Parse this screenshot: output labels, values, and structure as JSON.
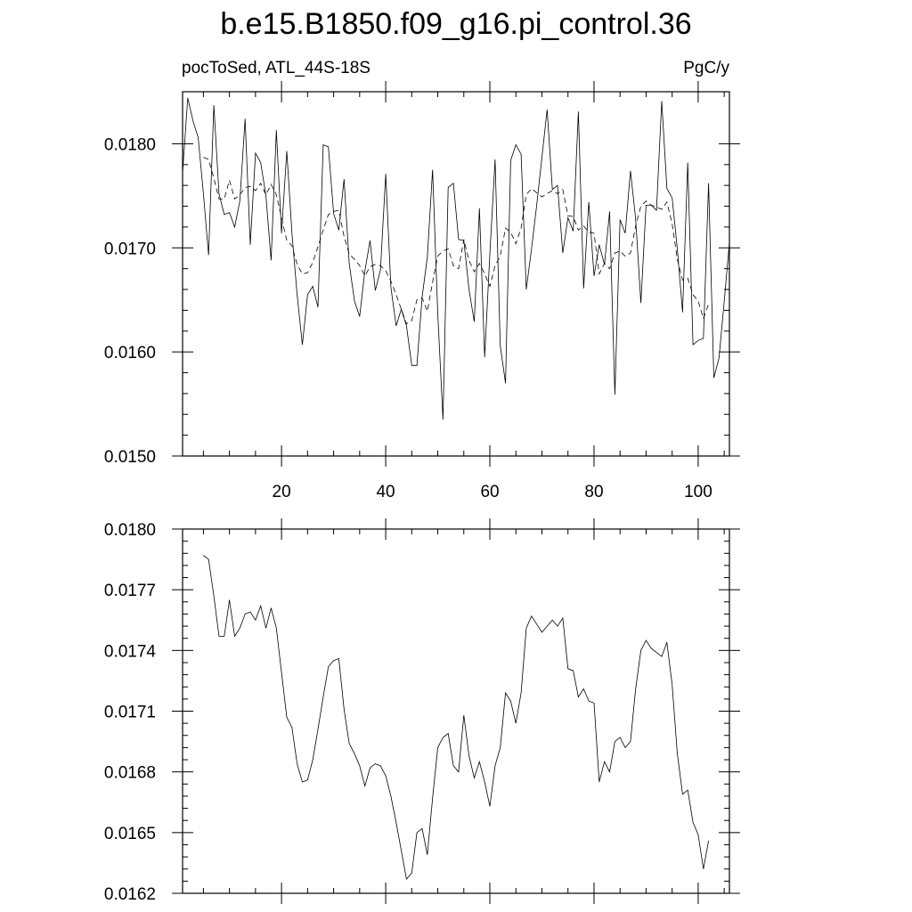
{
  "title": "b.e15.B1850.f09_g16.pi_control.36",
  "chart_data": [
    {
      "type": "line",
      "subtitle_left": "pocToSed, ATL_44S-18S",
      "subtitle_right": "PgC/y",
      "xlim": [
        1,
        106
      ],
      "ylim": [
        0.015,
        0.0185
      ],
      "xticks": [
        20,
        40,
        60,
        80,
        100
      ],
      "xtick_labels": [
        "20",
        "40",
        "60",
        "80",
        "100"
      ],
      "yticks": [
        0.015,
        0.016,
        0.017,
        0.018
      ],
      "ytick_labels": [
        "0.0150",
        "0.0160",
        "0.0170",
        "0.0180"
      ],
      "series": [
        {
          "style": "solid",
          "x": [
            1,
            2,
            3,
            4,
            5,
            6,
            7,
            8,
            9,
            10,
            11,
            12,
            13,
            14,
            15,
            16,
            17,
            18,
            19,
            20,
            21,
            22,
            23,
            24,
            25,
            26,
            27,
            28,
            29,
            30,
            31,
            32,
            33,
            34,
            35,
            36,
            37,
            38,
            39,
            40,
            41,
            42,
            43,
            44,
            45,
            46,
            47,
            48,
            49,
            50,
            51,
            52,
            53,
            54,
            55,
            56,
            57,
            58,
            59,
            60,
            61,
            62,
            63,
            64,
            65,
            66,
            67,
            68,
            69,
            70,
            71,
            72,
            73,
            74,
            75,
            76,
            77,
            78,
            79,
            80,
            81,
            82,
            83,
            84,
            85,
            86,
            87,
            88,
            89,
            90,
            91,
            92,
            93,
            94,
            95,
            96,
            97,
            98,
            99,
            100,
            101,
            102,
            103,
            104,
            105,
            106
          ],
          "values": [
            0.01772,
            0.01844,
            0.01822,
            0.01806,
            0.01752,
            0.01693,
            0.01837,
            0.01752,
            0.01732,
            0.01734,
            0.0172,
            0.01745,
            0.01824,
            0.01703,
            0.01791,
            0.01782,
            0.0175,
            0.01688,
            0.01813,
            0.01714,
            0.01793,
            0.01714,
            0.01655,
            0.01607,
            0.01655,
            0.01663,
            0.01643,
            0.01799,
            0.01797,
            0.01733,
            0.01717,
            0.01766,
            0.01685,
            0.01649,
            0.01634,
            0.01678,
            0.01707,
            0.01659,
            0.01679,
            0.01771,
            0.01662,
            0.01625,
            0.01641,
            0.01625,
            0.01587,
            0.01587,
            0.01653,
            0.01691,
            0.01775,
            0.01637,
            0.01535,
            0.01758,
            0.01762,
            0.01708,
            0.01707,
            0.0166,
            0.01629,
            0.01738,
            0.01595,
            0.01694,
            0.01785,
            0.01606,
            0.0157,
            0.01784,
            0.01799,
            0.0179,
            0.0166,
            0.01699,
            0.01741,
            0.01787,
            0.01833,
            0.01756,
            0.0176,
            0.01695,
            0.01729,
            0.01716,
            0.01831,
            0.01661,
            0.01744,
            0.01673,
            0.01703,
            0.01684,
            0.01735,
            0.01559,
            0.01727,
            0.01714,
            0.01774,
            0.01728,
            0.01647,
            0.01741,
            0.01741,
            0.01736,
            0.01841,
            0.01757,
            0.01748,
            0.01699,
            0.01638,
            0.01782,
            0.01607,
            0.01611,
            0.01613,
            0.01762,
            0.01575,
            0.01594,
            0.01649,
            0.01705
          ]
        },
        {
          "style": "dashed",
          "x": [
            5,
            6,
            7,
            8,
            9,
            10,
            11,
            12,
            13,
            14,
            15,
            16,
            17,
            18,
            19,
            20,
            21,
            22,
            23,
            24,
            25,
            26,
            27,
            28,
            29,
            30,
            31,
            32,
            33,
            34,
            35,
            36,
            37,
            38,
            39,
            40,
            41,
            42,
            43,
            44,
            45,
            46,
            47,
            48,
            49,
            50,
            51,
            52,
            53,
            54,
            55,
            56,
            57,
            58,
            59,
            60,
            61,
            62,
            63,
            64,
            65,
            66,
            67,
            68,
            69,
            70,
            71,
            72,
            73,
            74,
            75,
            76,
            77,
            78,
            79,
            80,
            81,
            82,
            83,
            84,
            85,
            86,
            87,
            88,
            89,
            90,
            91,
            92,
            93,
            94,
            95,
            96,
            97,
            98,
            99,
            100,
            101,
            102
          ],
          "values": [
            0.01787,
            0.01785,
            0.01767,
            0.01747,
            0.01747,
            0.01765,
            0.01747,
            0.01751,
            0.01758,
            0.01759,
            0.01755,
            0.01762,
            0.01751,
            0.01761,
            0.01751,
            0.01729,
            0.01707,
            0.01702,
            0.01684,
            0.01675,
            0.01676,
            0.01686,
            0.01701,
            0.01717,
            0.01732,
            0.01735,
            0.01736,
            0.01711,
            0.01694,
            0.01689,
            0.01683,
            0.01673,
            0.01682,
            0.01684,
            0.01683,
            0.01678,
            0.01668,
            0.01655,
            0.01641,
            0.01627,
            0.0163,
            0.0165,
            0.01652,
            0.01639,
            0.01667,
            0.01692,
            0.01697,
            0.01699,
            0.01683,
            0.0168,
            0.01708,
            0.01688,
            0.01677,
            0.01685,
            0.01675,
            0.01663,
            0.01683,
            0.01692,
            0.01719,
            0.01715,
            0.01704,
            0.01719,
            0.01751,
            0.01757,
            0.01753,
            0.01749,
            0.01752,
            0.01755,
            0.01752,
            0.01756,
            0.01731,
            0.0173,
            0.01717,
            0.01721,
            0.01715,
            0.01714,
            0.01675,
            0.01685,
            0.0168,
            0.01695,
            0.01697,
            0.01692,
            0.01695,
            0.01721,
            0.0174,
            0.01745,
            0.01741,
            0.01739,
            0.01737,
            0.01744,
            0.01723,
            0.01689,
            0.01669,
            0.01671,
            0.01655,
            0.01649,
            0.01632,
            0.01646
          ]
        }
      ]
    },
    {
      "type": "line",
      "xlim": [
        1,
        106
      ],
      "ylim": [
        0.0162,
        0.018
      ],
      "xticks": [
        20,
        40,
        60,
        80,
        100
      ],
      "yticks": [
        0.0162,
        0.0165,
        0.0168,
        0.0171,
        0.0174,
        0.0177,
        0.018
      ],
      "ytick_labels": [
        "0.0162",
        "0.0165",
        "0.0168",
        "0.0171",
        "0.0174",
        "0.0177",
        "0.0180"
      ],
      "series": [
        {
          "style": "solid",
          "x": [
            5,
            6,
            7,
            8,
            9,
            10,
            11,
            12,
            13,
            14,
            15,
            16,
            17,
            18,
            19,
            20,
            21,
            22,
            23,
            24,
            25,
            26,
            27,
            28,
            29,
            30,
            31,
            32,
            33,
            34,
            35,
            36,
            37,
            38,
            39,
            40,
            41,
            42,
            43,
            44,
            45,
            46,
            47,
            48,
            49,
            50,
            51,
            52,
            53,
            54,
            55,
            56,
            57,
            58,
            59,
            60,
            61,
            62,
            63,
            64,
            65,
            66,
            67,
            68,
            69,
            70,
            71,
            72,
            73,
            74,
            75,
            76,
            77,
            78,
            79,
            80,
            81,
            82,
            83,
            84,
            85,
            86,
            87,
            88,
            89,
            90,
            91,
            92,
            93,
            94,
            95,
            96,
            97,
            98,
            99,
            100,
            101,
            102
          ],
          "values": [
            0.01787,
            0.01785,
            0.01767,
            0.01747,
            0.01747,
            0.01765,
            0.01747,
            0.01751,
            0.01758,
            0.01759,
            0.01755,
            0.01762,
            0.01751,
            0.01761,
            0.01751,
            0.01729,
            0.01707,
            0.01702,
            0.01684,
            0.01675,
            0.01676,
            0.01686,
            0.01701,
            0.01717,
            0.01732,
            0.01735,
            0.01736,
            0.01711,
            0.01694,
            0.01689,
            0.01683,
            0.01673,
            0.01682,
            0.01684,
            0.01683,
            0.01678,
            0.01668,
            0.01655,
            0.01641,
            0.01627,
            0.0163,
            0.0165,
            0.01652,
            0.01639,
            0.01667,
            0.01692,
            0.01697,
            0.01699,
            0.01683,
            0.0168,
            0.01708,
            0.01688,
            0.01677,
            0.01685,
            0.01675,
            0.01663,
            0.01683,
            0.01692,
            0.01719,
            0.01715,
            0.01704,
            0.01719,
            0.01751,
            0.01757,
            0.01753,
            0.01749,
            0.01752,
            0.01755,
            0.01752,
            0.01756,
            0.01731,
            0.0173,
            0.01717,
            0.01721,
            0.01715,
            0.01714,
            0.01675,
            0.01685,
            0.0168,
            0.01695,
            0.01697,
            0.01692,
            0.01695,
            0.01721,
            0.0174,
            0.01745,
            0.01741,
            0.01739,
            0.01737,
            0.01744,
            0.01723,
            0.01689,
            0.01669,
            0.01671,
            0.01655,
            0.01649,
            0.01632,
            0.01646
          ]
        }
      ]
    }
  ]
}
